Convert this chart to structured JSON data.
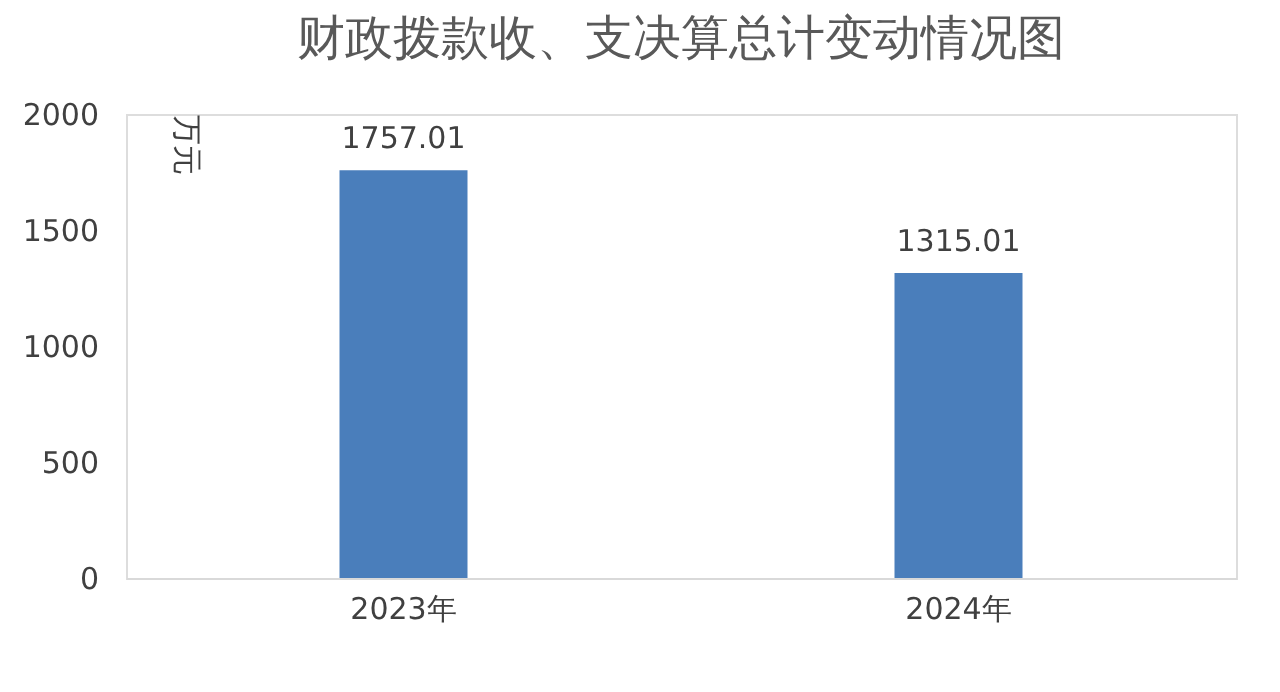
{
  "chart_data": {
    "type": "bar",
    "title": "财政拨款收、支决算总计变动情况图",
    "ylabel": "万元",
    "categories": [
      "2023年",
      "2024年"
    ],
    "values": [
      1757.01,
      1315.01
    ],
    "color": "#4a7ebb",
    "ylim": [
      0,
      2000
    ],
    "yticks": [
      0,
      500,
      1000,
      1500,
      2000
    ],
    "grid": false,
    "data_labels": true
  }
}
